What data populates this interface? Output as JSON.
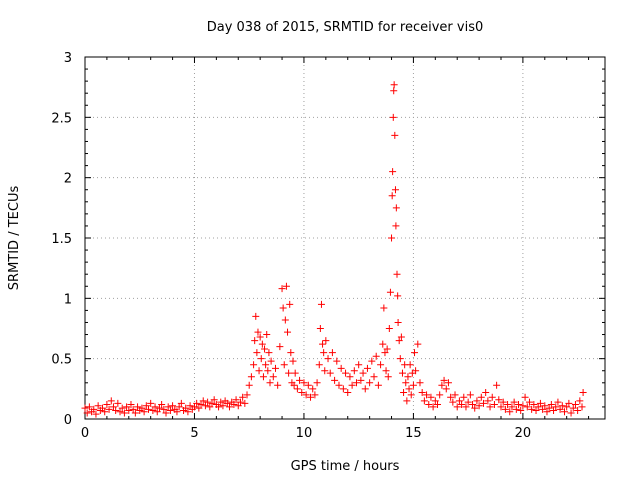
{
  "chart_data": {
    "type": "scatter",
    "title": "Day 038 of 2015, SRMTID for receiver vis0",
    "xlabel": "GPS time / hours",
    "ylabel": "SRMTID / TECUs",
    "xlim": [
      0,
      23.75
    ],
    "ylim": [
      0,
      3
    ],
    "xticks": [
      0,
      5,
      10,
      15,
      20
    ],
    "yticks": [
      0,
      0.5,
      1,
      1.5,
      2,
      2.5,
      3
    ],
    "xtick_labels": [
      "0",
      "5",
      "10",
      "15",
      "20"
    ],
    "ytick_labels": [
      "0",
      "0.5",
      "1",
      "1.5",
      "2",
      "2.5",
      "3"
    ],
    "grid": true,
    "marker": "+",
    "series": [
      {
        "name": "vis0",
        "color": "#ff0000",
        "points": [
          [
            0.0,
            0.09
          ],
          [
            0.1,
            0.05
          ],
          [
            0.2,
            0.1
          ],
          [
            0.3,
            0.06
          ],
          [
            0.4,
            0.08
          ],
          [
            0.5,
            0.04
          ],
          [
            0.6,
            0.11
          ],
          [
            0.7,
            0.07
          ],
          [
            0.8,
            0.09
          ],
          [
            0.9,
            0.06
          ],
          [
            1.0,
            0.12
          ],
          [
            1.1,
            0.08
          ],
          [
            1.2,
            0.15
          ],
          [
            1.3,
            0.1
          ],
          [
            1.4,
            0.07
          ],
          [
            1.5,
            0.13
          ],
          [
            1.6,
            0.06
          ],
          [
            1.7,
            0.09
          ],
          [
            1.8,
            0.05
          ],
          [
            1.9,
            0.1
          ],
          [
            2.0,
            0.07
          ],
          [
            2.1,
            0.12
          ],
          [
            2.2,
            0.08
          ],
          [
            2.3,
            0.05
          ],
          [
            2.4,
            0.1
          ],
          [
            2.5,
            0.07
          ],
          [
            2.6,
            0.09
          ],
          [
            2.7,
            0.06
          ],
          [
            2.8,
            0.11
          ],
          [
            2.9,
            0.08
          ],
          [
            3.0,
            0.13
          ],
          [
            3.1,
            0.07
          ],
          [
            3.2,
            0.1
          ],
          [
            3.3,
            0.06
          ],
          [
            3.4,
            0.09
          ],
          [
            3.5,
            0.12
          ],
          [
            3.6,
            0.08
          ],
          [
            3.7,
            0.05
          ],
          [
            3.8,
            0.1
          ],
          [
            3.9,
            0.07
          ],
          [
            4.0,
            0.11
          ],
          [
            4.1,
            0.08
          ],
          [
            4.2,
            0.06
          ],
          [
            4.3,
            0.1
          ],
          [
            4.4,
            0.13
          ],
          [
            4.5,
            0.07
          ],
          [
            4.6,
            0.09
          ],
          [
            4.7,
            0.06
          ],
          [
            4.8,
            0.11
          ],
          [
            4.9,
            0.08
          ],
          [
            5.0,
            0.1
          ],
          [
            5.1,
            0.13
          ],
          [
            5.2,
            0.09
          ],
          [
            5.3,
            0.12
          ],
          [
            5.4,
            0.15
          ],
          [
            5.5,
            0.11
          ],
          [
            5.6,
            0.14
          ],
          [
            5.7,
            0.1
          ],
          [
            5.8,
            0.13
          ],
          [
            5.9,
            0.16
          ],
          [
            6.0,
            0.12
          ],
          [
            6.1,
            0.1
          ],
          [
            6.2,
            0.14
          ],
          [
            6.3,
            0.11
          ],
          [
            6.4,
            0.15
          ],
          [
            6.5,
            0.13
          ],
          [
            6.6,
            0.1
          ],
          [
            6.7,
            0.14
          ],
          [
            6.8,
            0.12
          ],
          [
            6.9,
            0.16
          ],
          [
            7.0,
            0.11
          ],
          [
            7.1,
            0.14
          ],
          [
            7.2,
            0.18
          ],
          [
            7.3,
            0.13
          ],
          [
            7.4,
            0.2
          ],
          [
            7.5,
            0.28
          ],
          [
            7.6,
            0.35
          ],
          [
            7.7,
            0.45
          ],
          [
            7.75,
            0.65
          ],
          [
            7.8,
            0.85
          ],
          [
            7.85,
            0.55
          ],
          [
            7.9,
            0.72
          ],
          [
            7.95,
            0.4
          ],
          [
            8.0,
            0.68
          ],
          [
            8.05,
            0.5
          ],
          [
            8.1,
            0.62
          ],
          [
            8.15,
            0.35
          ],
          [
            8.2,
            0.58
          ],
          [
            8.25,
            0.45
          ],
          [
            8.3,
            0.7
          ],
          [
            8.35,
            0.4
          ],
          [
            8.4,
            0.55
          ],
          [
            8.45,
            0.3
          ],
          [
            8.5,
            0.48
          ],
          [
            8.6,
            0.35
          ],
          [
            8.7,
            0.42
          ],
          [
            8.8,
            0.28
          ],
          [
            8.9,
            0.6
          ],
          [
            9.0,
            1.08
          ],
          [
            9.05,
            0.92
          ],
          [
            9.1,
            0.45
          ],
          [
            9.15,
            0.82
          ],
          [
            9.2,
            1.1
          ],
          [
            9.25,
            0.72
          ],
          [
            9.3,
            0.38
          ],
          [
            9.35,
            0.95
          ],
          [
            9.4,
            0.55
          ],
          [
            9.45,
            0.3
          ],
          [
            9.5,
            0.48
          ],
          [
            9.55,
            0.28
          ],
          [
            9.6,
            0.38
          ],
          [
            9.7,
            0.25
          ],
          [
            9.8,
            0.32
          ],
          [
            9.9,
            0.22
          ],
          [
            10.0,
            0.3
          ],
          [
            10.1,
            0.2
          ],
          [
            10.2,
            0.28
          ],
          [
            10.3,
            0.18
          ],
          [
            10.4,
            0.25
          ],
          [
            10.5,
            0.2
          ],
          [
            10.6,
            0.3
          ],
          [
            10.7,
            0.45
          ],
          [
            10.75,
            0.75
          ],
          [
            10.8,
            0.95
          ],
          [
            10.85,
            0.62
          ],
          [
            10.9,
            0.55
          ],
          [
            10.95,
            0.4
          ],
          [
            11.0,
            0.65
          ],
          [
            11.1,
            0.5
          ],
          [
            11.2,
            0.38
          ],
          [
            11.3,
            0.55
          ],
          [
            11.4,
            0.32
          ],
          [
            11.5,
            0.48
          ],
          [
            11.6,
            0.28
          ],
          [
            11.7,
            0.42
          ],
          [
            11.8,
            0.25
          ],
          [
            11.9,
            0.38
          ],
          [
            12.0,
            0.22
          ],
          [
            12.1,
            0.35
          ],
          [
            12.2,
            0.28
          ],
          [
            12.3,
            0.4
          ],
          [
            12.4,
            0.3
          ],
          [
            12.5,
            0.45
          ],
          [
            12.6,
            0.32
          ],
          [
            12.7,
            0.38
          ],
          [
            12.8,
            0.25
          ],
          [
            12.9,
            0.42
          ],
          [
            13.0,
            0.3
          ],
          [
            13.1,
            0.48
          ],
          [
            13.2,
            0.35
          ],
          [
            13.3,
            0.52
          ],
          [
            13.4,
            0.28
          ],
          [
            13.5,
            0.45
          ],
          [
            13.6,
            0.62
          ],
          [
            13.65,
            0.92
          ],
          [
            13.7,
            0.55
          ],
          [
            13.75,
            0.4
          ],
          [
            13.8,
            0.58
          ],
          [
            13.85,
            0.35
          ],
          [
            13.9,
            0.75
          ],
          [
            13.95,
            1.05
          ],
          [
            14.0,
            1.5
          ],
          [
            14.03,
            1.85
          ],
          [
            14.05,
            2.05
          ],
          [
            14.08,
            2.5
          ],
          [
            14.1,
            2.72
          ],
          [
            14.12,
            2.77
          ],
          [
            14.15,
            2.35
          ],
          [
            14.18,
            1.9
          ],
          [
            14.2,
            1.6
          ],
          [
            14.22,
            1.75
          ],
          [
            14.25,
            1.2
          ],
          [
            14.28,
            1.02
          ],
          [
            14.3,
            0.8
          ],
          [
            14.35,
            0.65
          ],
          [
            14.4,
            0.5
          ],
          [
            14.45,
            0.68
          ],
          [
            14.5,
            0.38
          ],
          [
            14.55,
            0.22
          ],
          [
            14.6,
            0.45
          ],
          [
            14.65,
            0.3
          ],
          [
            14.7,
            0.15
          ],
          [
            14.75,
            0.35
          ],
          [
            14.8,
            0.25
          ],
          [
            14.85,
            0.45
          ],
          [
            14.9,
            0.2
          ],
          [
            14.95,
            0.38
          ],
          [
            15.0,
            0.28
          ],
          [
            15.05,
            0.55
          ],
          [
            15.1,
            0.4
          ],
          [
            15.2,
            0.62
          ],
          [
            15.3,
            0.3
          ],
          [
            15.4,
            0.22
          ],
          [
            15.5,
            0.15
          ],
          [
            15.6,
            0.2
          ],
          [
            15.7,
            0.12
          ],
          [
            15.8,
            0.18
          ],
          [
            15.9,
            0.1
          ],
          [
            16.0,
            0.15
          ],
          [
            16.1,
            0.12
          ],
          [
            16.2,
            0.2
          ],
          [
            16.3,
            0.28
          ],
          [
            16.4,
            0.32
          ],
          [
            16.5,
            0.25
          ],
          [
            16.6,
            0.3
          ],
          [
            16.7,
            0.18
          ],
          [
            16.8,
            0.14
          ],
          [
            16.9,
            0.2
          ],
          [
            17.0,
            0.1
          ],
          [
            17.1,
            0.15
          ],
          [
            17.2,
            0.12
          ],
          [
            17.3,
            0.18
          ],
          [
            17.4,
            0.1
          ],
          [
            17.5,
            0.14
          ],
          [
            17.6,
            0.2
          ],
          [
            17.7,
            0.12
          ],
          [
            17.8,
            0.09
          ],
          [
            17.9,
            0.15
          ],
          [
            18.0,
            0.11
          ],
          [
            18.1,
            0.18
          ],
          [
            18.2,
            0.13
          ],
          [
            18.3,
            0.22
          ],
          [
            18.4,
            0.15
          ],
          [
            18.5,
            0.1
          ],
          [
            18.6,
            0.18
          ],
          [
            18.7,
            0.12
          ],
          [
            18.8,
            0.28
          ],
          [
            18.9,
            0.16
          ],
          [
            19.0,
            0.1
          ],
          [
            19.1,
            0.14
          ],
          [
            19.2,
            0.08
          ],
          [
            19.3,
            0.12
          ],
          [
            19.4,
            0.06
          ],
          [
            19.5,
            0.1
          ],
          [
            19.6,
            0.14
          ],
          [
            19.7,
            0.08
          ],
          [
            19.8,
            0.12
          ],
          [
            19.9,
            0.07
          ],
          [
            20.0,
            0.11
          ],
          [
            20.1,
            0.18
          ],
          [
            20.2,
            0.1
          ],
          [
            20.3,
            0.14
          ],
          [
            20.4,
            0.08
          ],
          [
            20.5,
            0.12
          ],
          [
            20.6,
            0.07
          ],
          [
            20.7,
            0.1
          ],
          [
            20.8,
            0.13
          ],
          [
            20.9,
            0.08
          ],
          [
            21.0,
            0.11
          ],
          [
            21.1,
            0.06
          ],
          [
            21.2,
            0.09
          ],
          [
            21.3,
            0.12
          ],
          [
            21.4,
            0.07
          ],
          [
            21.5,
            0.1
          ],
          [
            21.6,
            0.14
          ],
          [
            21.7,
            0.08
          ],
          [
            21.8,
            0.11
          ],
          [
            21.9,
            0.06
          ],
          [
            22.0,
            0.1
          ],
          [
            22.1,
            0.13
          ],
          [
            22.2,
            0.05
          ],
          [
            22.3,
            0.09
          ],
          [
            22.4,
            0.12
          ],
          [
            22.5,
            0.07
          ],
          [
            22.6,
            0.15
          ],
          [
            22.7,
            0.1
          ],
          [
            22.75,
            0.22
          ]
        ]
      }
    ]
  }
}
